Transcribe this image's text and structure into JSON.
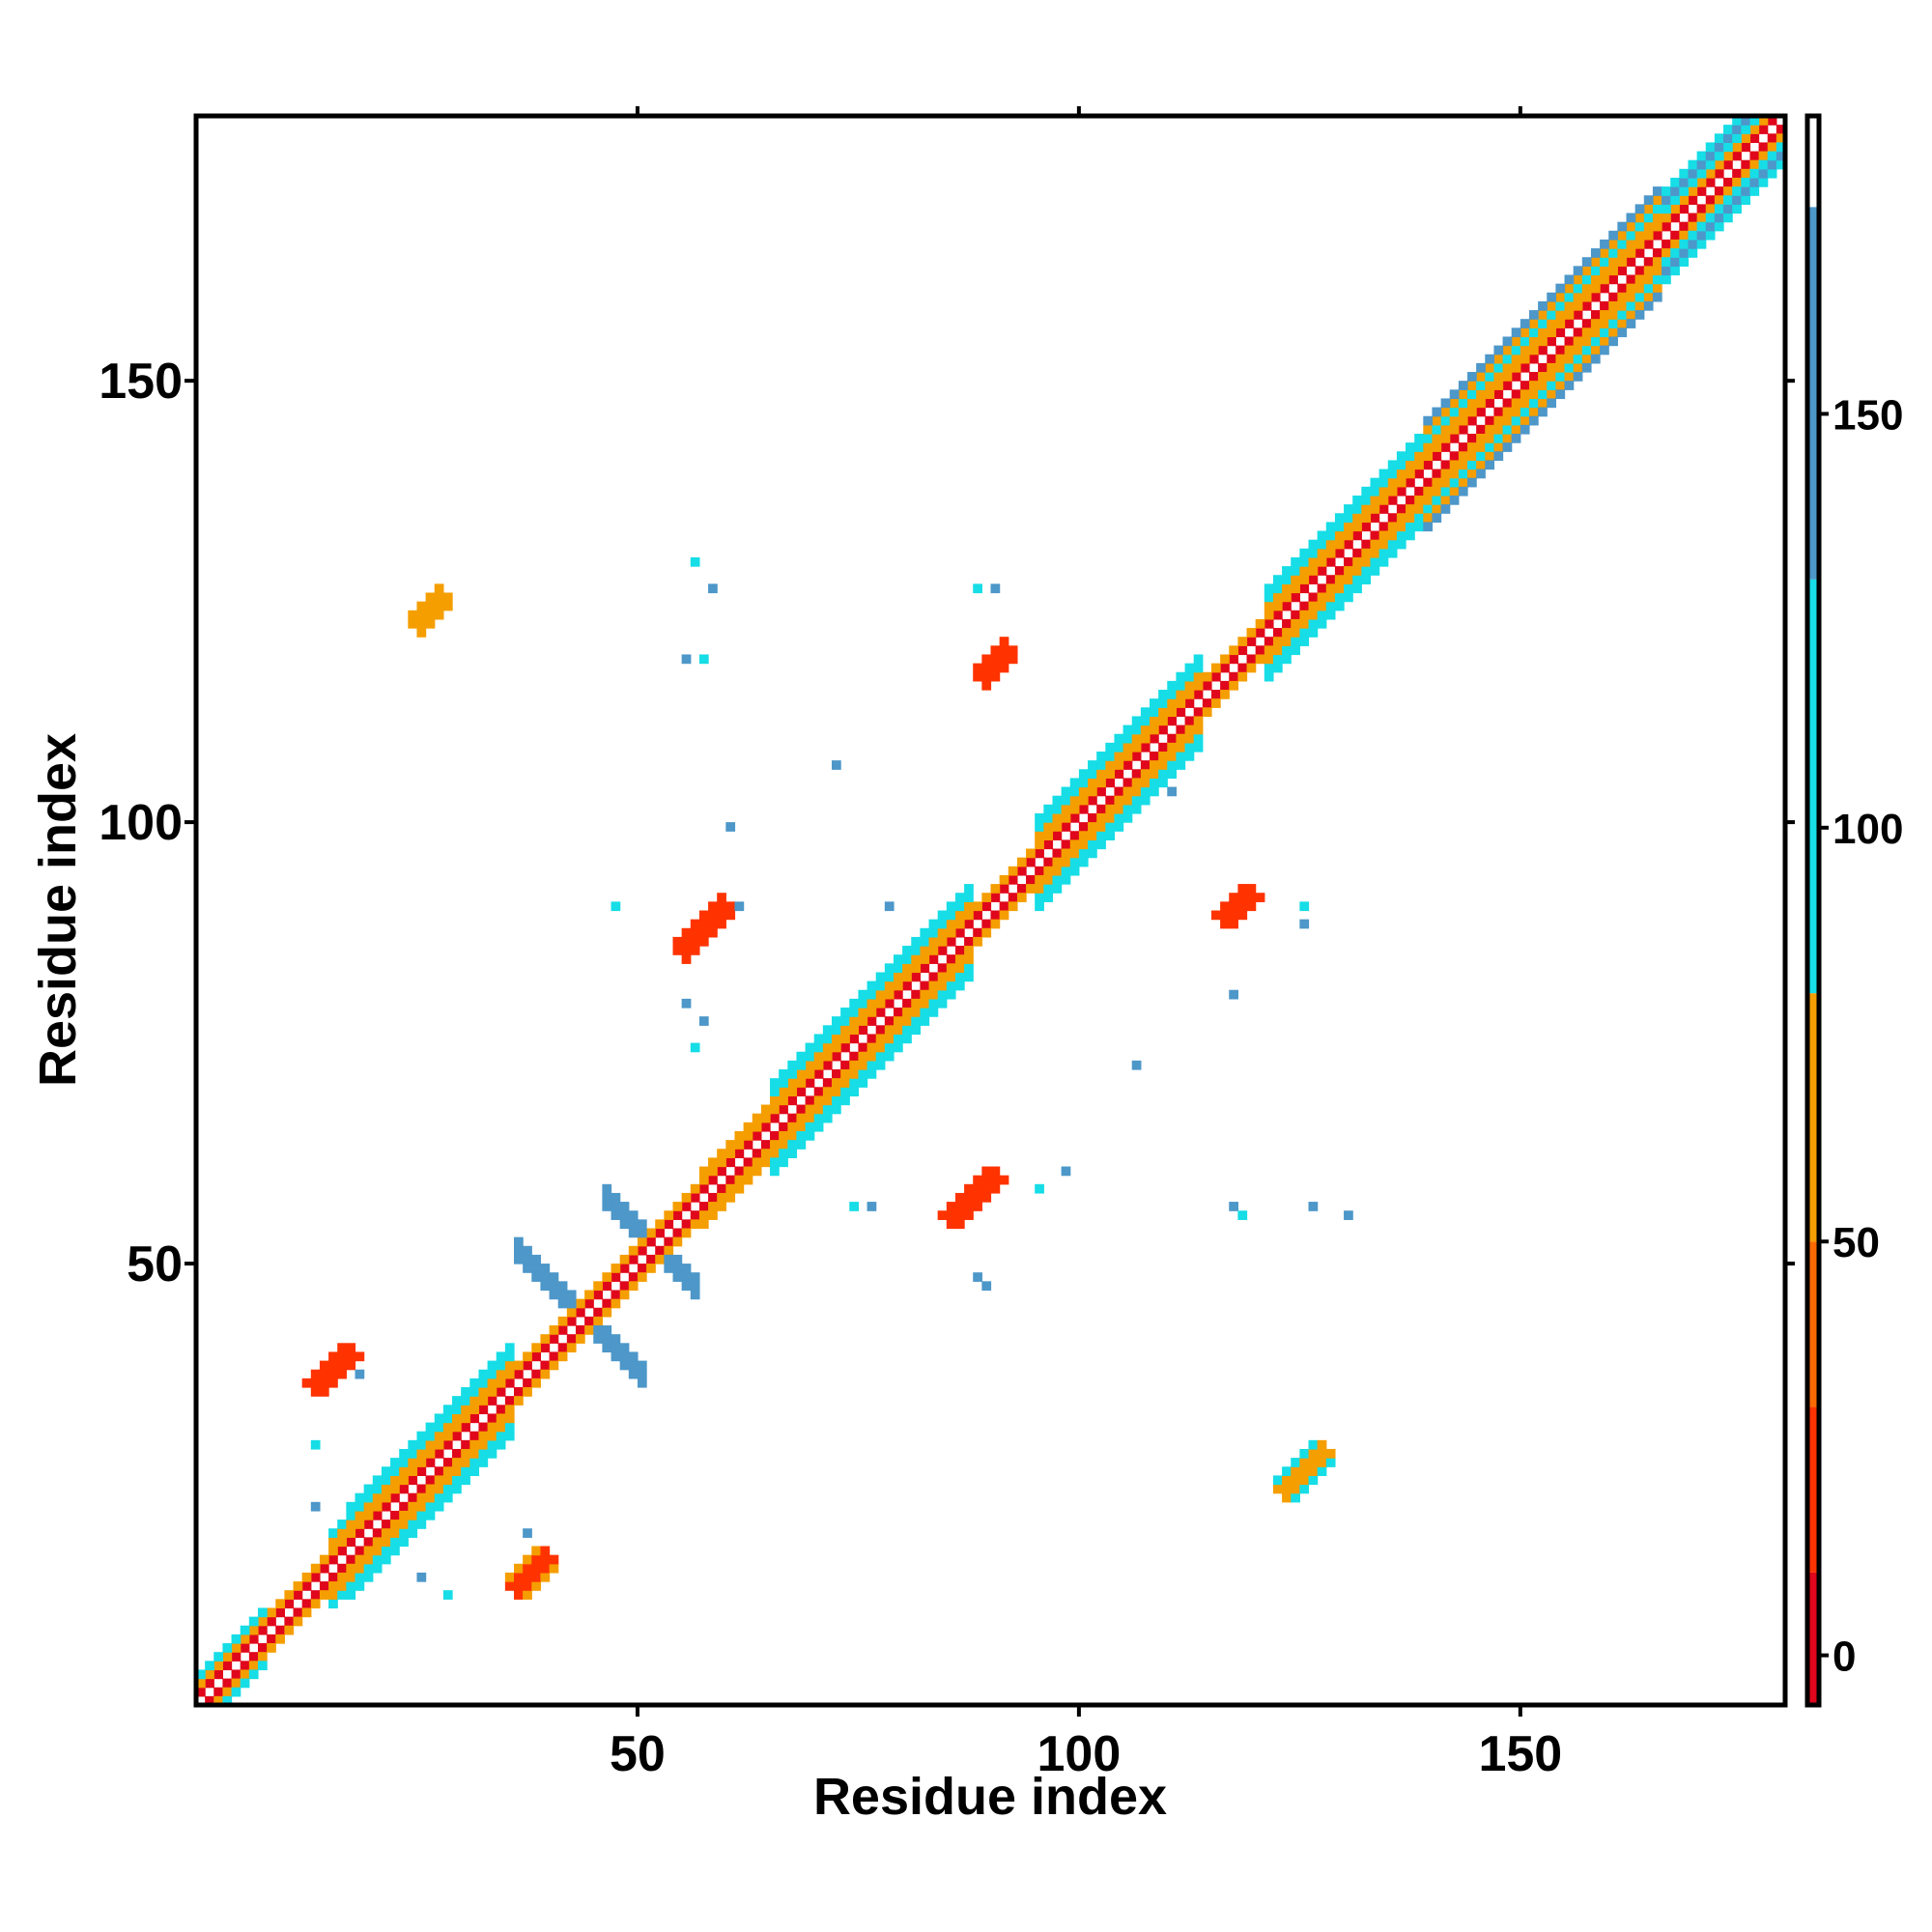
{
  "chart_data": {
    "type": "heatmap",
    "title": "",
    "xlabel": "Residue index",
    "ylabel": "Residue index",
    "xlim": [
      0,
      180
    ],
    "ylim": [
      0,
      180
    ],
    "x_ticks": [
      50,
      100,
      150
    ],
    "y_ticks": [
      50,
      100,
      150
    ],
    "x_tick_labels": [
      "50",
      "100",
      "150"
    ],
    "y_tick_labels": [
      "50",
      "100",
      "150"
    ],
    "colorbar": {
      "min": -6,
      "max": 186,
      "ticks": [
        0,
        50,
        100,
        150
      ],
      "tick_labels": [
        "0",
        "50",
        "100",
        "150"
      ],
      "stops": [
        {
          "from": -6,
          "to": 10,
          "color": "#e0061b"
        },
        {
          "from": 10,
          "to": 30,
          "color": "#ff3300"
        },
        {
          "from": 30,
          "to": 50,
          "color": "#ff6a00"
        },
        {
          "from": 50,
          "to": 80,
          "color": "#f59e00"
        },
        {
          "from": 80,
          "to": 130,
          "color": "#16dde6"
        },
        {
          "from": 130,
          "to": 175,
          "color": "#4d97c9"
        },
        {
          "from": 175,
          "to": 186,
          "color": "#ffffff"
        }
      ]
    },
    "grid": false,
    "legend": "colorbar-right",
    "regions": [
      {
        "kind": "diagonal_band",
        "from": 1,
        "to": 180,
        "half_width": 1,
        "value": 5
      },
      {
        "kind": "diagonal_band",
        "from": 1,
        "to": 180,
        "half_width": 2,
        "value": 40
      },
      {
        "kind": "diagonal_band",
        "from": 1,
        "to": 8,
        "half_width": 3,
        "value": 100
      },
      {
        "kind": "diagonal_band",
        "from": 16,
        "to": 36,
        "half_width": 4,
        "value": 60
      },
      {
        "kind": "diagonal_band",
        "from": 18,
        "to": 36,
        "half_width": 5,
        "value": 100
      },
      {
        "kind": "diagonal_band",
        "from": 58,
        "to": 70,
        "half_width": 3,
        "value": 60
      },
      {
        "kind": "diagonal_band",
        "from": 66,
        "to": 88,
        "half_width": 4,
        "value": 55
      },
      {
        "kind": "diagonal_band",
        "from": 66,
        "to": 88,
        "half_width": 5,
        "value": 100
      },
      {
        "kind": "diagonal_band",
        "from": 96,
        "to": 114,
        "half_width": 4,
        "value": 55
      },
      {
        "kind": "diagonal_band",
        "from": 96,
        "to": 114,
        "half_width": 5,
        "value": 100
      },
      {
        "kind": "diagonal_band",
        "from": 122,
        "to": 140,
        "half_width": 4,
        "value": 55
      },
      {
        "kind": "diagonal_band",
        "from": 122,
        "to": 140,
        "half_width": 5,
        "value": 100
      },
      {
        "kind": "diagonal_band",
        "from": 140,
        "to": 166,
        "half_width": 5,
        "value": 55
      },
      {
        "kind": "diagonal_band",
        "from": 140,
        "to": 166,
        "half_width": 6,
        "value": 100
      },
      {
        "kind": "diagonal_band",
        "from": 158,
        "to": 180,
        "half_width": 5,
        "value": 110
      },
      {
        "kind": "cross",
        "center": [
          44,
          45
        ],
        "arm": 7,
        "width": 1,
        "value": 150
      },
      {
        "kind": "cross",
        "center": [
          52,
          53
        ],
        "arm": 5,
        "width": 1,
        "value": 150
      },
      {
        "kind": "patch",
        "x": [
          13,
          19
        ],
        "y": [
          35,
          42
        ],
        "orientation": "anti",
        "value": 25
      },
      {
        "kind": "patch",
        "x": [
          35,
          42
        ],
        "y": [
          12,
          19
        ],
        "orientation": "anti",
        "value": 25
      },
      {
        "kind": "patch",
        "x": [
          54,
          62
        ],
        "y": [
          84,
          93
        ],
        "orientation": "anti",
        "value": 20
      },
      {
        "kind": "patch",
        "x": [
          84,
          93
        ],
        "y": [
          54,
          62
        ],
        "orientation": "anti",
        "value": 20
      },
      {
        "kind": "patch",
        "x": [
          88,
          94
        ],
        "y": [
          116,
          121
        ],
        "orientation": "anti",
        "value": 25
      },
      {
        "kind": "patch",
        "x": [
          116,
          121
        ],
        "y": [
          88,
          94
        ],
        "orientation": "anti",
        "value": 25
      },
      {
        "kind": "patch",
        "x": [
          24,
          30
        ],
        "y": [
          122,
          127
        ],
        "orientation": "anti",
        "value": 60
      },
      {
        "kind": "patch",
        "x": [
          122,
          130
        ],
        "y": [
          24,
          30
        ],
        "orientation": "anti",
        "value": 60
      },
      {
        "kind": "points",
        "coords": [
          [
            57,
            130
          ],
          [
            59,
            127
          ],
          [
            56,
            119
          ],
          [
            58,
            119
          ],
          [
            73,
            107
          ],
          [
            61,
            100
          ],
          [
            48,
            91
          ],
          [
            56,
            80
          ],
          [
            58,
            78
          ],
          [
            57,
            75
          ],
          [
            62,
            91
          ],
          [
            79,
            91
          ],
          [
            83,
            81
          ],
          [
            89,
            49
          ],
          [
            90,
            48
          ],
          [
            96,
            59
          ],
          [
            99,
            61
          ],
          [
            77,
            57
          ],
          [
            75,
            57
          ],
          [
            107,
            73
          ],
          [
            118,
            57
          ],
          [
            119,
            56
          ],
          [
            127,
            57
          ],
          [
            131,
            56
          ],
          [
            126,
            91
          ],
          [
            126,
            89
          ],
          [
            111,
            104
          ],
          [
            106,
            105
          ],
          [
            19,
            38
          ],
          [
            19,
            40
          ],
          [
            14,
            30
          ],
          [
            14,
            23
          ],
          [
            26,
            15
          ],
          [
            29,
            13
          ],
          [
            38,
            20
          ],
          [
            91,
            127
          ],
          [
            89,
            127
          ],
          [
            118,
            81
          ],
          [
            123,
            118
          ]
        ],
        "value": 140
      }
    ]
  }
}
